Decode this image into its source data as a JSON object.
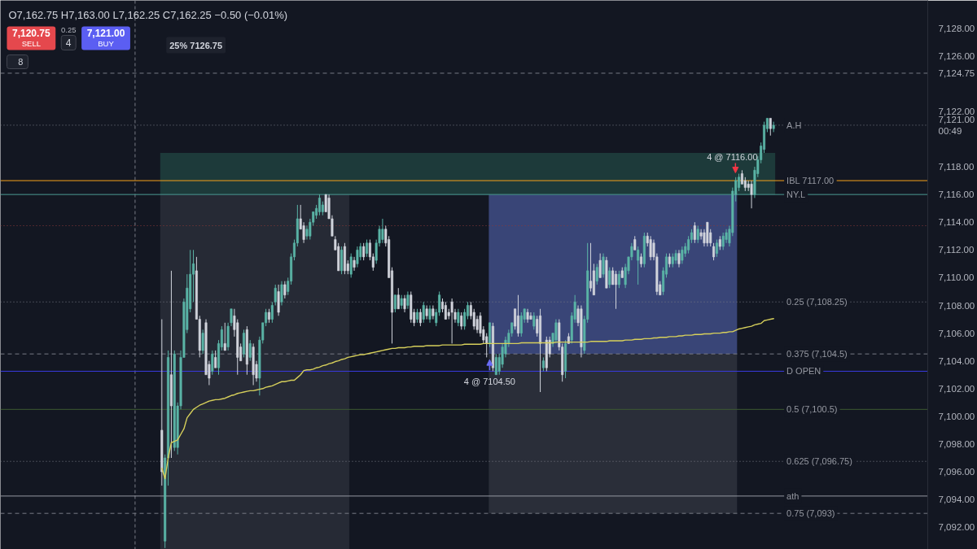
{
  "chart_data": {
    "type": "candlestick",
    "subtitle": "O7,162.75 H7,163.00 L7,162.25 C7,162.25 −0.50 (−0.01%)",
    "categories": [
      null,
      null,
      null,
      null,
      null,
      null,
      null,
      null,
      null,
      null,
      null,
      null,
      null,
      null,
      null,
      null,
      null,
      null,
      null,
      null,
      null,
      null,
      null,
      null,
      null,
      null,
      null,
      null,
      null,
      null,
      null,
      null,
      null,
      null,
      null,
      null,
      null,
      null,
      null,
      null,
      null,
      null,
      null,
      null,
      null,
      null,
      null,
      null,
      null,
      null,
      null,
      null,
      null,
      null,
      null,
      null,
      null,
      null,
      null,
      null,
      null,
      null,
      null,
      null,
      null,
      null,
      null,
      null,
      null,
      null,
      null,
      null,
      null,
      null,
      null,
      null,
      null,
      null,
      null,
      null,
      null,
      null,
      null,
      null,
      null,
      null,
      null,
      null,
      null,
      null,
      null,
      null,
      null,
      null,
      null,
      null,
      null,
      null,
      null,
      null,
      null,
      null,
      null,
      null,
      null,
      null,
      null,
      null,
      null,
      null,
      null,
      null,
      null,
      null,
      null,
      null,
      null,
      null,
      null,
      null,
      null,
      null,
      null,
      null,
      null,
      null,
      null,
      null,
      null,
      null,
      null,
      null,
      null,
      null,
      null,
      null,
      null,
      null,
      null,
      null,
      null,
      null,
      null,
      null,
      null,
      null,
      null,
      null,
      null,
      null,
      null,
      null,
      null,
      null,
      null,
      null,
      null,
      null,
      null,
      null,
      null,
      null,
      null,
      null,
      null,
      null,
      null,
      null,
      null,
      null,
      null,
      null,
      null,
      null,
      null,
      null,
      null,
      null,
      null,
      null,
      null,
      null,
      null,
      null,
      null,
      null,
      null,
      null,
      null,
      null,
      null,
      null,
      null,
      null,
      null
    ],
    "ohlc": [
      [
        7099,
        7107,
        7095,
        7096
      ],
      [
        7091,
        7097.25,
        7090.5,
        7097
      ],
      [
        7097,
        7104.75,
        7095,
        7104.25
      ],
      [
        7103,
        7110.5,
        7097,
        7100.75
      ],
      [
        7097.75,
        7104.75,
        7097.5,
        7104.5
      ],
      [
        7097.75,
        7101,
        7097.25,
        7100.75
      ],
      [
        7100.75,
        7104.75,
        7100.5,
        7104.25
      ],
      [
        7104.25,
        7108.5,
        7104.25,
        7108.25
      ],
      [
        7106.25,
        7110.25,
        7106,
        7109.25
      ],
      [
        7107.75,
        7112,
        7107.5,
        7110.25
      ],
      [
        7110.25,
        7112,
        7108.25,
        7111
      ],
      [
        7110.5,
        7111.5,
        7107,
        7107
      ],
      [
        7107,
        7107.25,
        7104.25,
        7104.75
      ],
      [
        7104.75,
        7106.25,
        7104.5,
        7106
      ],
      [
        7106.75,
        7107,
        7103,
        7103
      ],
      [
        7103.75,
        7104,
        7102.25,
        7102.75
      ],
      [
        7103.25,
        7104.75,
        7103,
        7104.5
      ],
      [
        7104.25,
        7104.75,
        7103.5,
        7103.5
      ],
      [
        7103.5,
        7105.5,
        7103,
        7105.25
      ],
      [
        7105,
        7106.5,
        7104.75,
        7106.25
      ],
      [
        7105.25,
        7106.75,
        7104.75,
        7104.75
      ],
      [
        7105,
        7106.75,
        7104.75,
        7106.5
      ],
      [
        7106.75,
        7107.75,
        7106.5,
        7107.75
      ],
      [
        7107.25,
        7107.75,
        7105.75,
        7106.25
      ],
      [
        7106.75,
        7107,
        7103,
        7104.25
      ],
      [
        7105,
        7105.25,
        7104,
        7104
      ],
      [
        7104.5,
        7106.25,
        7104.25,
        7106
      ],
      [
        7106.25,
        7106.5,
        7103,
        7103.75
      ],
      [
        7104.25,
        7105.5,
        7104,
        7105.25
      ],
      [
        7105,
        7105.25,
        7102.25,
        7103
      ],
      [
        7103.75,
        7104,
        7102.5,
        7102.75
      ],
      [
        7102.75,
        7105.75,
        7101.5,
        7105.5
      ],
      [
        7105.5,
        7106.75,
        7105.25,
        7106.75
      ],
      [
        7106.75,
        7107.75,
        7106.5,
        7107.5
      ],
      [
        7107.5,
        7107.75,
        7106.75,
        7107
      ],
      [
        7107,
        7108.25,
        7106.75,
        7108
      ],
      [
        7108.25,
        7109.5,
        7108,
        7109.25
      ],
      [
        7109,
        7109.5,
        7107.25,
        7107.5
      ],
      [
        7108.25,
        7109.75,
        7108,
        7109.5
      ],
      [
        7109.5,
        7109.75,
        7108.5,
        7108.75
      ],
      [
        7109,
        7110,
        7108.75,
        7109.75
      ],
      [
        7109.75,
        7111.75,
        7109.5,
        7111.5
      ],
      [
        7111.5,
        7112.75,
        7111.25,
        7112.5
      ],
      [
        7112.5,
        7115.25,
        7112.25,
        7114.25
      ],
      [
        7114.25,
        7115.25,
        7113.5,
        7113.5
      ],
      [
        7113.75,
        7114,
        7112.5,
        7112.75
      ],
      [
        7113,
        7113.75,
        7112.75,
        7113.5
      ],
      [
        7113,
        7114.25,
        7112.75,
        7114
      ],
      [
        7114,
        7114.75,
        7113.75,
        7114.75
      ],
      [
        7114.5,
        7115.25,
        7114.25,
        7115
      ],
      [
        7114.75,
        7116,
        7114.5,
        7115.75
      ],
      [
        7114.75,
        7115.5,
        7114.5,
        7115.25
      ],
      [
        7116,
        7116,
        7114.75,
        7114.75
      ],
      [
        7115.75,
        7116,
        7114.25,
        7114.25
      ],
      [
        7114.25,
        7114.5,
        7113,
        7113
      ],
      [
        7112.75,
        7113,
        7112,
        7112
      ],
      [
        7112.25,
        7112.5,
        7110.5,
        7110.5
      ],
      [
        7110.5,
        7112.25,
        7110.25,
        7112
      ],
      [
        7112.25,
        7112.5,
        7110.25,
        7110.5
      ],
      [
        7111,
        7111.25,
        7110.25,
        7110.5
      ],
      [
        7110.25,
        7111.75,
        7110,
        7111.5
      ],
      [
        7111.25,
        7111.5,
        7110.5,
        7110.75
      ],
      [
        7111,
        7112.25,
        7110.75,
        7112
      ],
      [
        7111.5,
        7112.5,
        7111.25,
        7112.25
      ],
      [
        7112.25,
        7112.5,
        7111.25,
        7111.5
      ],
      [
        7111.75,
        7112.75,
        7111.5,
        7112.5
      ],
      [
        7112.5,
        7112.75,
        7111.25,
        7111.5
      ],
      [
        7111.5,
        7111.75,
        7110.5,
        7110.75
      ],
      [
        7111.25,
        7112.75,
        7111,
        7112.5
      ],
      [
        7112.5,
        7113.75,
        7112.25,
        7113.5
      ],
      [
        7112.75,
        7114.25,
        7112.5,
        7113.5
      ],
      [
        7113.5,
        7113.75,
        7112.25,
        7112.5
      ],
      [
        7112.75,
        7113,
        7110,
        7110
      ],
      [
        7110.5,
        7110.75,
        7105.25,
        7107.5
      ],
      [
        7107.75,
        7108.75,
        7107.5,
        7108.75
      ],
      [
        7108.75,
        7109.25,
        7107.75,
        7107.75
      ],
      [
        7108,
        7108.75,
        7107.75,
        7108.5
      ],
      [
        7108.5,
        7108.75,
        7107.5,
        7107.75
      ],
      [
        7108,
        7109,
        7107.75,
        7108.75
      ],
      [
        7108.75,
        7109,
        7106.75,
        7107
      ],
      [
        7107.5,
        7107.75,
        7106.5,
        7106.75
      ],
      [
        7107,
        7107.75,
        7106.75,
        7107.5
      ],
      [
        7107.5,
        7107.75,
        7106.5,
        7106.75
      ],
      [
        7107,
        7108.25,
        7106.75,
        7108
      ],
      [
        7107.75,
        7108,
        7107,
        7107.25
      ],
      [
        7107,
        7108,
        7106.75,
        7107.75
      ],
      [
        7107.75,
        7108,
        7107,
        7107.25
      ],
      [
        7106.75,
        7107.75,
        7106.5,
        7107.5
      ],
      [
        7107.5,
        7109,
        7107.25,
        7108.75
      ],
      [
        7108.25,
        7108.5,
        7107.5,
        7107.75
      ],
      [
        7108,
        7108.25,
        7107,
        7107
      ],
      [
        7107.5,
        7107.75,
        7107,
        7107.25
      ],
      [
        7108.25,
        7108.5,
        7105.25,
        7107.5
      ],
      [
        7107.5,
        7107.75,
        7106.75,
        7107
      ],
      [
        7106.75,
        7107.75,
        7106.5,
        7107.5
      ],
      [
        7107.25,
        7107.5,
        7106.25,
        7106.5
      ],
      [
        7106.5,
        7107.75,
        7106.25,
        7107.5
      ],
      [
        7107.25,
        7108.25,
        7107,
        7108
      ],
      [
        7108,
        7108.25,
        7107,
        7107.25
      ],
      [
        7107.5,
        7107.75,
        7106.25,
        7106.5
      ],
      [
        7107,
        7107.25,
        7106,
        7106.25
      ],
      [
        7107.25,
        7107.5,
        7105.75,
        7106
      ],
      [
        7106.25,
        7106.5,
        7105.25,
        7105.5
      ],
      [
        7105.75,
        7106,
        7104.25,
        7105.25
      ],
      [
        7105.25,
        7106.75,
        7105,
        7106.75
      ],
      [
        7106.5,
        7106.75,
        7103.25,
        7103.5
      ],
      [
        7103,
        7104.5,
        7103,
        7104.25
      ],
      [
        7103.25,
        7104.5,
        7103,
        7104.25
      ],
      [
        7103.75,
        7105.25,
        7103.5,
        7105
      ],
      [
        7104.5,
        7105.75,
        7104.25,
        7105.5
      ],
      [
        7105.25,
        7106.25,
        7105,
        7106
      ],
      [
        7106,
        7106.75,
        7105.75,
        7106.75
      ],
      [
        7107.75,
        7107.75,
        7106.25,
        7106.5
      ],
      [
        7107.25,
        7108.75,
        7105.75,
        7106
      ],
      [
        7106,
        7107.5,
        7105.75,
        7107.25
      ],
      [
        7107,
        7107.75,
        7106.75,
        7107.75
      ],
      [
        7107.5,
        7107.75,
        7106.75,
        7107
      ],
      [
        7107.25,
        7107.5,
        7107,
        7107
      ],
      [
        7106.5,
        7107.5,
        7106.25,
        7107.25
      ],
      [
        7107,
        7107.25,
        7105.75,
        7106
      ],
      [
        7107.25,
        7107.75,
        7101.75,
        7105.25
      ],
      [
        7103.5,
        7104.25,
        7103.25,
        7104
      ],
      [
        7105.5,
        7105.75,
        7103.25,
        7103.5
      ],
      [
        7105.5,
        7105.75,
        7104.25,
        7104.5
      ],
      [
        7105.25,
        7106,
        7105,
        7106
      ],
      [
        7105.5,
        7107,
        7105.25,
        7106.75
      ],
      [
        7106.75,
        7107,
        7104.75,
        7105
      ],
      [
        7105,
        7105.25,
        7102.5,
        7103
      ],
      [
        7103.25,
        7105.5,
        7102.75,
        7105.25
      ],
      [
        7105.75,
        7106,
        7105.25,
        7105.25
      ],
      [
        7105.5,
        7107.5,
        7105.25,
        7107.25
      ],
      [
        7107,
        7108.75,
        7106.75,
        7108.25
      ],
      [
        7107.75,
        7108,
        7106.5,
        7106.75
      ],
      [
        7107.75,
        7108,
        7104.25,
        7105
      ],
      [
        7104.75,
        7107.25,
        7104.5,
        7107
      ],
      [
        7107,
        7112.5,
        7106.75,
        7110.5
      ],
      [
        7109.75,
        7112.5,
        7109,
        7109.25
      ],
      [
        7110.5,
        7111,
        7108.75,
        7108.75
      ],
      [
        7109.75,
        7111,
        7109.5,
        7110.75
      ],
      [
        7111.25,
        7111.75,
        7110,
        7110
      ],
      [
        7110.25,
        7111.75,
        7110,
        7111.5
      ],
      [
        7111.25,
        7111.5,
        7109.25,
        7109.25
      ],
      [
        7109.5,
        7110.75,
        7109.25,
        7110.5
      ],
      [
        7110.5,
        7110.75,
        7109.5,
        7109.5
      ],
      [
        7110.25,
        7110.5,
        7107.75,
        7109.5
      ],
      [
        7109.5,
        7110.5,
        7109.25,
        7110.25
      ],
      [
        7110.5,
        7110.75,
        7110,
        7110
      ],
      [
        7109.5,
        7111,
        7109.25,
        7110.75
      ],
      [
        7110.5,
        7111.5,
        7110.25,
        7111.5
      ],
      [
        7111.5,
        7112.5,
        7111.25,
        7112.25
      ],
      [
        7112.75,
        7113,
        7112,
        7112
      ],
      [
        7111.25,
        7112.25,
        7109.5,
        7112
      ],
      [
        7111.5,
        7111.75,
        7110.75,
        7111
      ],
      [
        7111,
        7113.25,
        7110.75,
        7113
      ],
      [
        7113,
        7113.25,
        7112.25,
        7112.5
      ],
      [
        7112.75,
        7113,
        7111.25,
        7111.5
      ],
      [
        7112.5,
        7112.75,
        7111.25,
        7111.5
      ],
      [
        7111.5,
        7111.75,
        7108.75,
        7109
      ],
      [
        7109.5,
        7109.75,
        7108.75,
        7108.75
      ],
      [
        7109,
        7110.75,
        7108.75,
        7110.5
      ],
      [
        7110.25,
        7111.75,
        7110,
        7111.5
      ],
      [
        7111.5,
        7111.75,
        7110.75,
        7111
      ],
      [
        7111,
        7111.75,
        7110.75,
        7111.5
      ],
      [
        7111.25,
        7112,
        7111,
        7111.75
      ],
      [
        7111.75,
        7112,
        7110.75,
        7111
      ],
      [
        7111.25,
        7112.25,
        7111,
        7112
      ],
      [
        7111.75,
        7112.5,
        7111.5,
        7112.25
      ],
      [
        7112,
        7113,
        7111.75,
        7112.75
      ],
      [
        7112.75,
        7113.5,
        7112.5,
        7113.25
      ],
      [
        7113.75,
        7114,
        7112.5,
        7112.75
      ],
      [
        7112.75,
        7113.75,
        7112.5,
        7113.5
      ],
      [
        7113.25,
        7113.5,
        7112.75,
        7113
      ],
      [
        7113.25,
        7113.5,
        7112.25,
        7112.5
      ],
      [
        7114,
        7114,
        7112.25,
        7112.5
      ],
      [
        7113.25,
        7113.5,
        7112.25,
        7112.5
      ],
      [
        7112.25,
        7112.5,
        7111.25,
        7111.5
      ],
      [
        7111.75,
        7112.75,
        7111.5,
        7112.5
      ],
      [
        7112.75,
        7113,
        7112,
        7112.25
      ],
      [
        7112.25,
        7113.25,
        7112,
        7113
      ],
      [
        7112.75,
        7113.5,
        7112.5,
        7113.25
      ],
      [
        7112.5,
        7113.75,
        7112.25,
        7113.5
      ],
      [
        7113.25,
        7116.5,
        7113,
        7116.25
      ],
      [
        7116,
        7117.25,
        7115.5,
        7117
      ],
      [
        7116.5,
        7117.5,
        7116.25,
        7117.25
      ],
      [
        7117.5,
        7117.75,
        7116.75,
        7116.75
      ],
      [
        7117,
        7117.25,
        7116.25,
        7116.5
      ],
      [
        7116.75,
        7117,
        7116.25,
        7116.5
      ],
      [
        7116.75,
        7117,
        7115,
        7116
      ],
      [
        7116,
        7118,
        7115.75,
        7117.75
      ],
      [
        7117.5,
        7118.75,
        7117.25,
        7118.5
      ],
      [
        7118.5,
        7119.75,
        7118.25,
        7119.5
      ],
      [
        7119.25,
        7121.25,
        7119,
        7121
      ],
      [
        7120.75,
        7121.5,
        7120.5,
        7121.5
      ],
      [
        7121.5,
        7121.5,
        7120.25,
        7120.75
      ],
      [
        7120.75,
        7121.25,
        7120.5,
        7121
      ]
    ],
    "colors": [
      "#d1d4dc",
      "#5ab4a6",
      "#5ab4a6",
      "#d1d4dc",
      "#5ab4a6",
      "#5ab4a6",
      "#5ab4a6",
      "#5ab4a6",
      "#5ab4a6",
      "#5ab4a6",
      "#5ab4a6",
      "#d1d4dc",
      "#d1d4dc",
      "#5ab4a6",
      "#d1d4dc",
      "#d1d4dc",
      "#5ab4a6",
      "#d1d4dc",
      "#5ab4a6",
      "#5ab4a6",
      "#d1d4dc",
      "#5ab4a6",
      "#5ab4a6",
      "#d1d4dc",
      "#d1d4dc",
      "#d1d4dc",
      "#5ab4a6",
      "#d1d4dc",
      "#5ab4a6",
      "#d1d4dc",
      "#d1d4dc",
      "#5ab4a6",
      "#5ab4a6",
      "#5ab4a6",
      "#d1d4dc",
      "#5ab4a6",
      "#5ab4a6",
      "#d1d4dc",
      "#5ab4a6",
      "#d1d4dc",
      "#5ab4a6",
      "#5ab4a6",
      "#5ab4a6",
      "#5ab4a6",
      "#d1d4dc",
      "#d1d4dc",
      "#5ab4a6",
      "#5ab4a6",
      "#5ab4a6",
      "#5ab4a6",
      "#5ab4a6",
      "#5ab4a6",
      "#d1d4dc",
      "#d1d4dc",
      "#d1d4dc",
      "#d1d4dc",
      "#d1d4dc",
      "#5ab4a6",
      "#d1d4dc",
      "#d1d4dc",
      "#5ab4a6",
      "#d1d4dc",
      "#5ab4a6",
      "#5ab4a6",
      "#d1d4dc",
      "#5ab4a6",
      "#d1d4dc",
      "#d1d4dc",
      "#5ab4a6",
      "#5ab4a6",
      "#5ab4a6",
      "#d1d4dc",
      "#d1d4dc",
      "#d1d4dc",
      "#5ab4a6",
      "#d1d4dc",
      "#5ab4a6",
      "#d1d4dc",
      "#5ab4a6",
      "#d1d4dc",
      "#d1d4dc",
      "#5ab4a6",
      "#d1d4dc",
      "#5ab4a6",
      "#d1d4dc",
      "#5ab4a6",
      "#d1d4dc",
      "#5ab4a6",
      "#5ab4a6",
      "#d1d4dc",
      "#d1d4dc",
      "#d1d4dc",
      "#d1d4dc",
      "#d1d4dc",
      "#5ab4a6",
      "#d1d4dc",
      "#5ab4a6",
      "#5ab4a6",
      "#d1d4dc",
      "#d1d4dc",
      "#d1d4dc",
      "#d1d4dc",
      "#d1d4dc",
      "#d1d4dc",
      "#5ab4a6",
      "#d1d4dc",
      "#5ab4a6",
      "#5ab4a6",
      "#5ab4a6",
      "#5ab4a6",
      "#5ab4a6",
      "#5ab4a6",
      "#d1d4dc",
      "#d1d4dc",
      "#5ab4a6",
      "#5ab4a6",
      "#d1d4dc",
      "#d1d4dc",
      "#5ab4a6",
      "#d1d4dc",
      "#d1d4dc",
      "#5ab4a6",
      "#d1d4dc",
      "#d1d4dc",
      "#5ab4a6",
      "#5ab4a6",
      "#d1d4dc",
      "#d1d4dc",
      "#5ab4a6",
      "#d1d4dc",
      "#5ab4a6",
      "#5ab4a6",
      "#d1d4dc",
      "#d1d4dc",
      "#5ab4a6",
      "#5ab4a6",
      "#d1d4dc",
      "#d1d4dc",
      "#5ab4a6",
      "#d1d4dc",
      "#5ab4a6",
      "#d1d4dc",
      "#5ab4a6",
      "#d1d4dc",
      "#d1d4dc",
      "#5ab4a6",
      "#d1d4dc",
      "#5ab4a6",
      "#5ab4a6",
      "#5ab4a6",
      "#d1d4dc",
      "#5ab4a6",
      "#d1d4dc",
      "#5ab4a6",
      "#d1d4dc",
      "#d1d4dc",
      "#d1d4dc",
      "#d1d4dc",
      "#d1d4dc",
      "#5ab4a6",
      "#5ab4a6",
      "#d1d4dc",
      "#5ab4a6",
      "#5ab4a6",
      "#d1d4dc",
      "#5ab4a6",
      "#5ab4a6",
      "#5ab4a6",
      "#5ab4a6",
      "#d1d4dc",
      "#5ab4a6",
      "#d1d4dc",
      "#d1d4dc",
      "#d1d4dc",
      "#d1d4dc",
      "#d1d4dc",
      "#5ab4a6",
      "#d1d4dc",
      "#5ab4a6",
      "#5ab4a6",
      "#5ab4a6",
      "#5ab4a6",
      "#5ab4a6",
      "#5ab4a6",
      "#d1d4dc",
      "#d1d4dc",
      "#d1d4dc",
      "#d1d4dc",
      "#5ab4a6",
      "#5ab4a6",
      "#5ab4a6",
      "#5ab4a6",
      "#5ab4a6",
      "#d1d4dc",
      "#5ab4a6"
    ],
    "series": [
      {
        "type": "line",
        "color": "#d6cf5b",
        "values": [
          7096.25,
          7095.5,
          7097,
          7098.1,
          7098.2,
          7098.3,
          7098.7,
          7099.1,
          7099.9,
          7100.2,
          7100.5,
          7100.65,
          7100.8,
          7100.9,
          7101,
          7101.1,
          7101.15,
          7101.2,
          7101.2,
          7101.25,
          7101.3,
          7101.4,
          7101.5,
          7101.55,
          7101.65,
          7101.7,
          7101.75,
          7101.8,
          7101.85,
          7101.85,
          7101.9,
          7101.95,
          7102,
          7102.1,
          7102.15,
          7102.2,
          7102.3,
          7102.4,
          7102.5,
          7102.5,
          7102.55,
          7102.6,
          7102.6,
          7102.8,
          7103,
          7103.3,
          7103.35,
          7103.35,
          7103.4,
          7103.5,
          7103.55,
          7103.65,
          7103.7,
          7103.8,
          7103.85,
          7103.95,
          7104,
          7104.1,
          7104.15,
          7104.25,
          7104.3,
          7104.35,
          7104.4,
          7104.45,
          7104.45,
          7104.5,
          7104.55,
          7104.6,
          7104.65,
          7104.7,
          7104.75,
          7104.8,
          7104.85,
          7104.9,
          7104.9,
          7104.95,
          7104.95,
          7104.95,
          7105,
          7105,
          7105.05,
          7105.05,
          7105.05,
          7105.05,
          7105.1,
          7105.1,
          7105.1,
          7105.1,
          7105.1,
          7105.15,
          7105.15,
          7105.15,
          7105.15,
          7105.15,
          7105.15,
          7105.15,
          7105.2,
          7105.2,
          7105.2,
          7105.2,
          7105.2,
          7105.2,
          7105.25,
          7105.25,
          7105.25,
          7105.25,
          7105.25,
          7105.25,
          7105.25,
          7105.25,
          7105.25,
          7105.25,
          7105.25,
          7105.25,
          7105.3,
          7105.3,
          7105.3,
          7105.3,
          7105.3,
          7105.3,
          7105.3,
          7105.3,
          7105.3,
          7105.3,
          7105.3,
          7105.35,
          7105.35,
          7105.35,
          7105.35,
          7105.35,
          7105.35,
          7105.35,
          7105.35,
          7105.35,
          7105.35,
          7105.35,
          7105.4,
          7105.4,
          7105.4,
          7105.4,
          7105.4,
          7105.4,
          7105.45,
          7105.45,
          7105.45,
          7105.45,
          7105.45,
          7105.5,
          7105.5,
          7105.5,
          7105.55,
          7105.55,
          7105.55,
          7105.6,
          7105.6,
          7105.6,
          7105.65,
          7105.65,
          7105.7,
          7105.7,
          7105.7,
          7105.75,
          7105.75,
          7105.75,
          7105.8,
          7105.8,
          7105.85,
          7105.85,
          7105.85,
          7105.9,
          7105.9,
          7105.9,
          7105.95,
          7105.95,
          7105.95,
          7106,
          7106,
          7106,
          7106.05,
          7106.05,
          7106.1,
          7106.1,
          7106.2,
          7106.3,
          7106.35,
          7106.4,
          7106.45,
          7106.5,
          7106.6,
          7106.65,
          7106.7,
          7106.9,
          7106.95,
          7107,
          7107.05
        ]
      }
    ],
    "ylim": [
      7090.4,
      7130
    ],
    "yticks": [
      {
        "value": 7092,
        "label": "7,092.00"
      },
      {
        "value": 7094,
        "label": "7,094.00"
      },
      {
        "value": 7096,
        "label": "7,096.00"
      },
      {
        "value": 7098,
        "label": "7,098.00"
      },
      {
        "value": 7100,
        "label": "7,100.00"
      },
      {
        "value": 7102,
        "label": "7,102.00"
      },
      {
        "value": 7104,
        "label": "7,104.00"
      },
      {
        "value": 7106,
        "label": "7,106.00"
      },
      {
        "value": 7108,
        "label": "7,108.00"
      },
      {
        "value": 7110,
        "label": "7,110.00"
      },
      {
        "value": 7112,
        "label": "7,112.00"
      },
      {
        "value": 7114,
        "label": "7,114.00"
      },
      {
        "value": 7116,
        "label": "7,116.00"
      },
      {
        "value": 7118,
        "label": "7,118.00"
      },
      {
        "value": 7121,
        "label": "7,121.00\n00:49"
      },
      {
        "value": 7122,
        "label": "7,122.00"
      },
      {
        "value": 7124.75,
        "label": "7,124.75"
      },
      {
        "value": 7126,
        "label": "7,126.00"
      },
      {
        "value": 7128,
        "label": "7,128.00"
      }
    ],
    "tick_labels": "y",
    "ref_lines": [
      {
        "axis": "y",
        "value": 7124.75,
        "color": "#787b86",
        "line_style": "dashed"
      },
      {
        "axis": "y",
        "value": 7121,
        "label": "A.H",
        "color": "#787b86",
        "line_style": "dotted"
      },
      {
        "axis": "y",
        "value": 7117,
        "label": "IBL 7117.00",
        "color": "#f7a21b",
        "line_style": "solid"
      },
      {
        "axis": "y",
        "value": 7116,
        "label": "NY.L",
        "color": "#4c9b94",
        "line_style": "solid"
      },
      {
        "axis": "y",
        "value": 7113.75,
        "color": "#8c3a3a",
        "line_style": "dotted"
      },
      {
        "axis": "y",
        "value": 7108.25,
        "label": "0.25 (7,108.25)",
        "color": "#787b86",
        "line_style": "dotted"
      },
      {
        "axis": "y",
        "value": 7104.5,
        "label": "0.375 (7,104.5)",
        "color": "#787b86",
        "line_style": "dashed"
      },
      {
        "axis": "y",
        "value": 7103.25,
        "label": "D OPEN",
        "color": "#3a3ae0",
        "line_style": "solid"
      },
      {
        "axis": "y",
        "value": 7100.5,
        "label": "0.5 (7,100.5)",
        "color": "#3d5a32",
        "line_style": "solid"
      },
      {
        "axis": "y",
        "value": 7096.75,
        "label": "0.625 (7,096.75)",
        "color": "#787b86",
        "line_style": "dotted"
      },
      {
        "axis": "y",
        "value": 7094.25,
        "label": "ath",
        "color": "#9598a1",
        "line_style": "solid"
      },
      {
        "axis": "y",
        "value": 7093,
        "label": "0.75 (7,093)",
        "color": "#787b86",
        "line_style": "dashed"
      }
    ],
    "bands": [
      {
        "axis": "y",
        "from": 7116,
        "to": 7119,
        "color": "#1d3a3a"
      },
      {
        "axis": "y",
        "from": 7104.5,
        "to": 7116,
        "color": "#394577"
      },
      {
        "axis": "y",
        "from": 7093,
        "to": 7104.5,
        "color": "#2a2e39"
      },
      {
        "axis": "y",
        "from": 7090.4,
        "to": 7116,
        "color": "#262a35"
      }
    ],
    "annotations": [
      "7,120.75",
      "SELL",
      "0.25",
      "4",
      "7,121.00",
      "BUY",
      "8",
      "25% 7126.75",
      {
        "text": "4 @ 7104.50",
        "y": 7104.5
      },
      "4 @ 7116.00"
    ]
  }
}
